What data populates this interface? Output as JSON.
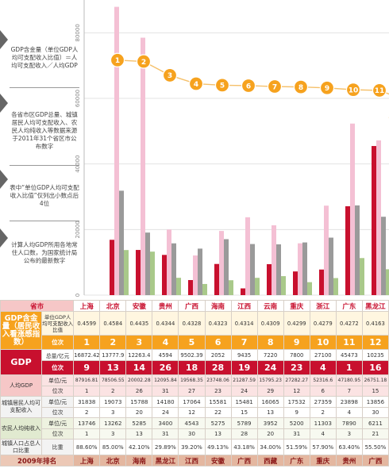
{
  "notes": [
    "GDP含金量（单位GDP人均可支配收入比值）＝人均可支配收入／人均GDP",
    "各省市区GDP总量、城镇居民人均可支配收入、农民人均纯收入等数据来源于2011年31个省区市公布数字",
    "表中“单位GDP人均可支配收入比值”仅列出小数点后4位",
    "计算人均GDP所用各地常住人口数，为国家统计局公布的最新数字"
  ],
  "table": {
    "province_header": "省市",
    "gdp_gold_label": "GDP含金量（居民收入看涨感指数）",
    "gdp_gold_sub1": "单位GDP人均可支配收入比值",
    "rank_sub": "位次",
    "gdp_label": "GDP",
    "gdp_sub1": "总量/亿元",
    "per_capita_label": "人均GDP",
    "unit_yuan": "单位/元",
    "urban_label": "城镇居民人均可支配收入",
    "rural_label": "农民人均纯收入",
    "urban_ratio_label": "城镇人口占总人口比重",
    "ratio_sub": "比重",
    "rank2009_label": "2009年排名",
    "provinces": [
      "上海",
      "北京",
      "安徽",
      "贵州",
      "广西",
      "海南",
      "江西",
      "云南",
      "重庆",
      "浙江",
      "广东",
      "黑龙江"
    ],
    "gdp_gold_ratio": [
      "0.4599",
      "0.4584",
      "0.4435",
      "0.4344",
      "0.4328",
      "0.4323",
      "0.4314",
      "0.4309",
      "0.4299",
      "0.4279",
      "0.4272",
      "0.4163"
    ],
    "gdp_gold_rank": [
      "1",
      "2",
      "3",
      "4",
      "5",
      "6",
      "7",
      "8",
      "9",
      "10",
      "11",
      "12"
    ],
    "gdp_total": [
      "16872.42",
      "13777.9",
      "12263.4",
      "4594",
      "9502.39",
      "2052",
      "9435",
      "7220",
      "7800",
      "27100",
      "45473",
      "10235"
    ],
    "gdp_rank": [
      "9",
      "13",
      "14",
      "26",
      "18",
      "28",
      "19",
      "24",
      "23",
      "4",
      "1",
      "16"
    ],
    "per_capita_gdp": [
      "87916.81",
      "78506.55",
      "20002.28",
      "12095.84",
      "19568.35",
      "23748.06",
      "21287.59",
      "15795.23",
      "27282.27",
      "52316.6",
      "47180.95",
      "26751.18"
    ],
    "per_capita_rank": [
      "1",
      "2",
      "26",
      "31",
      "27",
      "23",
      "24",
      "29",
      "12",
      "6",
      "7",
      "15"
    ],
    "urban_income": [
      "31838",
      "19073",
      "15788",
      "14180",
      "17064",
      "15581",
      "15481",
      "16065",
      "17532",
      "27359",
      "23898",
      "13856"
    ],
    "urban_rank": [
      "2",
      "3",
      "20",
      "24",
      "12",
      "22",
      "15",
      "13",
      "9",
      "2",
      "4",
      "30"
    ],
    "rural_income": [
      "13746",
      "13262",
      "5285",
      "3400",
      "4543",
      "5275",
      "5789",
      "3952",
      "5200",
      "11303",
      "7890",
      "6211"
    ],
    "rural_rank": [
      "1",
      "3",
      "13",
      "31",
      "30",
      "13",
      "28",
      "20",
      "31",
      "4",
      "3",
      "21"
    ],
    "urban_ratio": [
      "88.60%",
      "85.00%",
      "42.10%",
      "29.89%",
      "39.20%",
      "49.13%",
      "43.18%",
      "34.00%",
      "51.59%",
      "57.90%",
      "63.40%",
      "55.50%"
    ],
    "rank2009": [
      "上海",
      "北京",
      "海南",
      "黑龙江",
      "江西",
      "安徽",
      "广西",
      "西藏",
      "广东",
      "重庆",
      "贵州",
      "广西"
    ]
  },
  "chart_data": {
    "type": "bar",
    "categories": [
      "上海",
      "北京",
      "安徽",
      "贵州",
      "广西",
      "海南",
      "江西",
      "云南",
      "重庆",
      "浙江",
      "广东",
      "黑龙江"
    ],
    "ylim": [
      0,
      90000
    ],
    "y_ticks": [
      "0",
      "20000",
      "40000",
      "60000",
      "80000"
    ],
    "series": [
      {
        "key": "gdp_total",
        "color": "#c8102e",
        "values": [
          16872.42,
          13777.9,
          12263.4,
          4594,
          9502.39,
          2052,
          9435,
          7220,
          7800,
          27100,
          45473,
          10235
        ]
      },
      {
        "key": "per_capita_gdp",
        "color": "#f4c0d4",
        "values": [
          87916.81,
          78506.55,
          20002.28,
          12095.84,
          19568.35,
          23748.06,
          21287.59,
          15795.23,
          27282.27,
          52316.6,
          47180.95,
          26751.18
        ]
      },
      {
        "key": "urban_income",
        "color": "#9a9a9a",
        "values": [
          31838,
          19073,
          15788,
          14180,
          17064,
          15581,
          15481,
          16065,
          17532,
          27359,
          23898,
          13856
        ]
      },
      {
        "key": "rural_income",
        "color": "#a9c98a",
        "values": [
          13746,
          13262,
          5285,
          3400,
          4543,
          5275,
          5789,
          3952,
          5200,
          11303,
          7890,
          6211
        ]
      }
    ],
    "rank_badges": [
      "1",
      "2",
      "3",
      "4",
      "5",
      "6",
      "7",
      "8",
      "9",
      "10",
      "11",
      "12"
    ],
    "badge_color": "#f6a21e",
    "trend_line": "GDP含金量 ratio",
    "trend_values": [
      0.4599,
      0.4584,
      0.4435,
      0.4344,
      0.4328,
      0.4323,
      0.4314,
      0.4309,
      0.4299,
      0.4279,
      0.4272,
      0.4163
    ],
    "gridlines": true
  }
}
